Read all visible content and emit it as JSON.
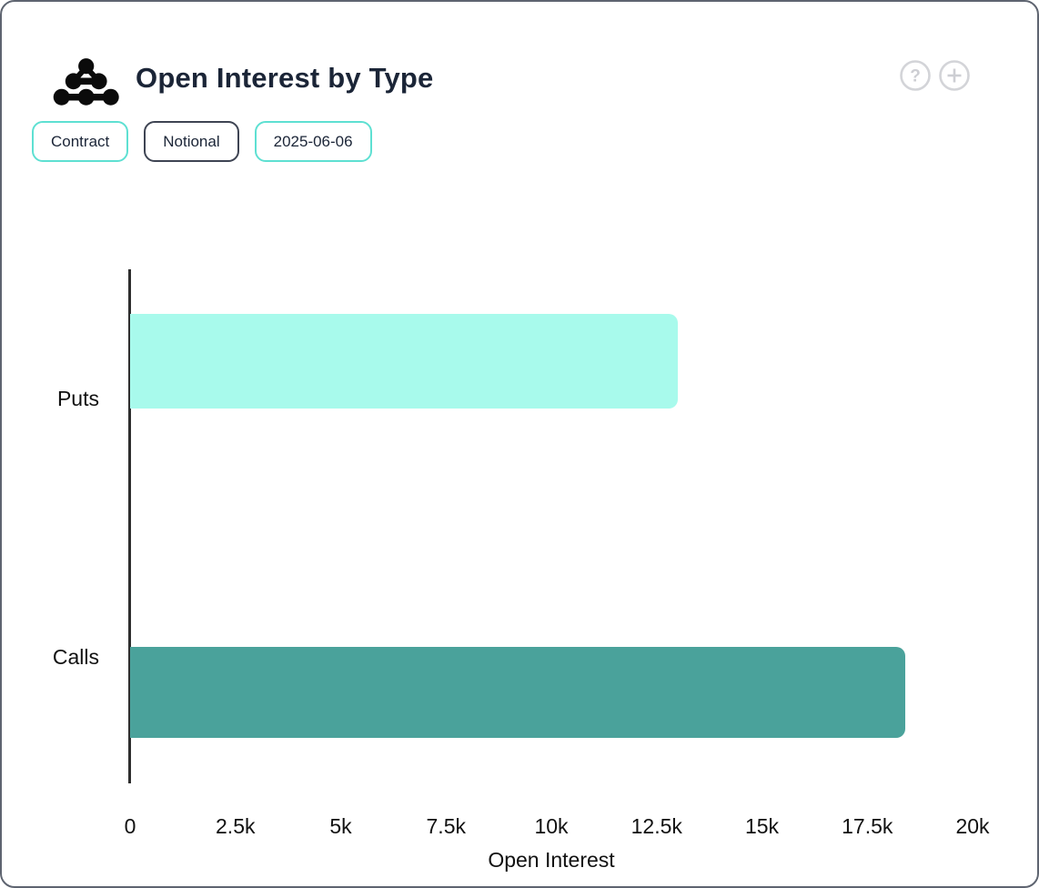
{
  "header": {
    "title": "Open Interest by Type",
    "logo_icon": "molecule-logo-icon",
    "help_icon": "?",
    "add_icon": "+"
  },
  "filters": [
    {
      "label": "Contract",
      "variant": "teal"
    },
    {
      "label": "Notional",
      "variant": "dark"
    },
    {
      "label": "2025-06-06",
      "variant": "teal"
    }
  ],
  "colors": {
    "card_border": "#5e6470",
    "accent_teal_border": "#5ee0d2",
    "dark_border": "#3e4453",
    "title_text": "#1b2537",
    "icon_gray": "#cdced3",
    "axis_line": "#2e2e2e",
    "chart_text": "#111111",
    "puts_bar": "#a8faec",
    "calls_bar": "#4aa29b"
  },
  "chart_data": {
    "type": "bar",
    "orientation": "horizontal",
    "title": "Open Interest by Type",
    "categories": [
      "Puts",
      "Calls"
    ],
    "values": [
      13000,
      18400
    ],
    "bar_colors": [
      "#a8faec",
      "#4aa29b"
    ],
    "xlabel": "Open Interest",
    "ylabel": "",
    "xlim": [
      0,
      20000
    ],
    "xticks": [
      0,
      2500,
      5000,
      7500,
      10000,
      12500,
      15000,
      17500,
      20000
    ],
    "xtick_labels": [
      "0",
      "2.5k",
      "5k",
      "7.5k",
      "10k",
      "12.5k",
      "15k",
      "17.5k",
      "20k"
    ],
    "grid": false,
    "legend": false
  }
}
